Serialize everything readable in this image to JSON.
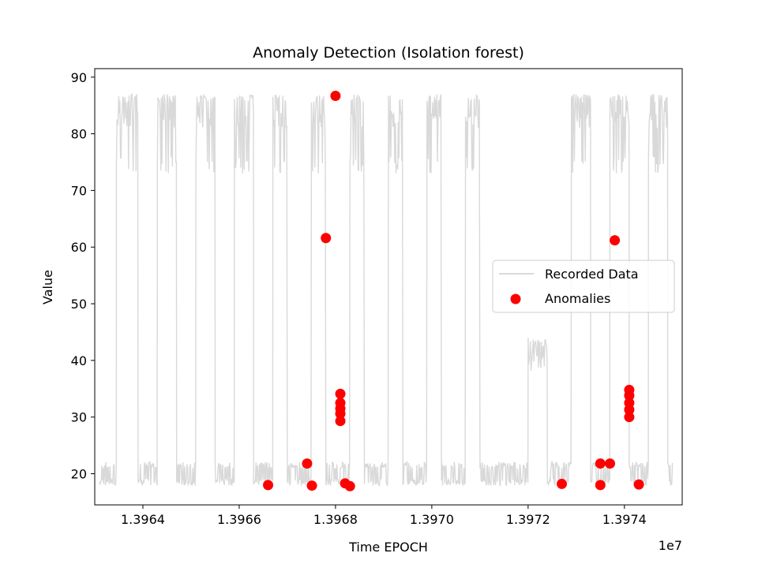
{
  "chart_data": {
    "type": "line+scatter",
    "title": "Anomaly Detection (Isolation forest)",
    "xlabel": "Time EPOCH",
    "ylabel": "Value",
    "x_offset_label": "1e7",
    "xlim": [
      1.3963,
      1.39752
    ],
    "ylim": [
      14.5,
      91.5
    ],
    "xticks": [
      1.3964,
      1.3966,
      1.3968,
      1.397,
      1.3972,
      1.3974
    ],
    "xtick_labels": [
      "1.3964",
      "1.3966",
      "1.3968",
      "1.3970",
      "1.3972",
      "1.3974"
    ],
    "yticks": [
      20,
      30,
      40,
      50,
      60,
      70,
      80,
      90
    ],
    "ytick_labels": [
      "20",
      "30",
      "40",
      "50",
      "60",
      "70",
      "80",
      "90"
    ],
    "legend": {
      "position": "center-right",
      "entries": [
        "Recorded Data",
        "Anomalies"
      ]
    },
    "series": [
      {
        "name": "Recorded Data",
        "kind": "line",
        "color": "#d9d9d9",
        "cycles": [
          {
            "low_start": 1.39631,
            "high_start": 1.396345,
            "high_end": 1.39639,
            "high_level": 83
          },
          {
            "low_start": 1.39639,
            "high_start": 1.39643,
            "high_end": 1.39647,
            "high_level": 83
          },
          {
            "low_start": 1.39647,
            "high_start": 1.39651,
            "high_end": 1.39655,
            "high_level": 83
          },
          {
            "low_start": 1.39655,
            "high_start": 1.39659,
            "high_end": 1.39663,
            "high_level": 83
          },
          {
            "low_start": 1.39663,
            "high_start": 1.39667,
            "high_end": 1.3967,
            "high_level": 83
          },
          {
            "low_start": 1.3967,
            "high_start": 1.39675,
            "high_end": 1.39678,
            "high_level": 83
          },
          {
            "low_start": 1.39678,
            "high_start": 1.39683,
            "high_end": 1.39686,
            "high_level": 83
          },
          {
            "low_start": 1.39686,
            "high_start": 1.39691,
            "high_end": 1.39694,
            "high_level": 83
          },
          {
            "low_start": 1.39694,
            "high_start": 1.39699,
            "high_end": 1.39702,
            "high_level": 83
          },
          {
            "low_start": 1.39702,
            "high_start": 1.39707,
            "high_end": 1.3971,
            "high_level": 83
          },
          {
            "low_start": 1.3971,
            "high_start": 1.3972,
            "high_end": 1.39724,
            "high_level": 42
          },
          {
            "low_start": 1.39724,
            "high_start": 1.39729,
            "high_end": 1.39733,
            "high_level": 83
          },
          {
            "low_start": 1.39733,
            "high_start": 1.39737,
            "high_end": 1.39741,
            "high_level": 83
          },
          {
            "low_start": 1.39741,
            "high_start": 1.39745,
            "high_end": 1.39749,
            "high_level": 83
          }
        ],
        "x_end": 1.3975
      },
      {
        "name": "Anomalies",
        "kind": "scatter",
        "color": "#ff0000",
        "points": [
          {
            "x": 1.39666,
            "y": 18.0
          },
          {
            "x": 1.396741,
            "y": 21.8
          },
          {
            "x": 1.396751,
            "y": 17.9
          },
          {
            "x": 1.39678,
            "y": 61.6
          },
          {
            "x": 1.3968,
            "y": 86.7
          },
          {
            "x": 1.39681,
            "y": 34.1
          },
          {
            "x": 1.39681,
            "y": 32.5
          },
          {
            "x": 1.39681,
            "y": 31.5
          },
          {
            "x": 1.39681,
            "y": 30.6
          },
          {
            "x": 1.39681,
            "y": 29.3
          },
          {
            "x": 1.39682,
            "y": 18.3
          },
          {
            "x": 1.39683,
            "y": 17.8
          },
          {
            "x": 1.39727,
            "y": 18.2
          },
          {
            "x": 1.39735,
            "y": 21.8
          },
          {
            "x": 1.39735,
            "y": 18.0
          },
          {
            "x": 1.39737,
            "y": 21.8
          },
          {
            "x": 1.39738,
            "y": 61.2
          },
          {
            "x": 1.39741,
            "y": 34.8
          },
          {
            "x": 1.39741,
            "y": 33.8
          },
          {
            "x": 1.39741,
            "y": 32.5
          },
          {
            "x": 1.39741,
            "y": 31.3
          },
          {
            "x": 1.39741,
            "y": 30.0
          },
          {
            "x": 1.39743,
            "y": 18.1
          }
        ]
      }
    ]
  }
}
